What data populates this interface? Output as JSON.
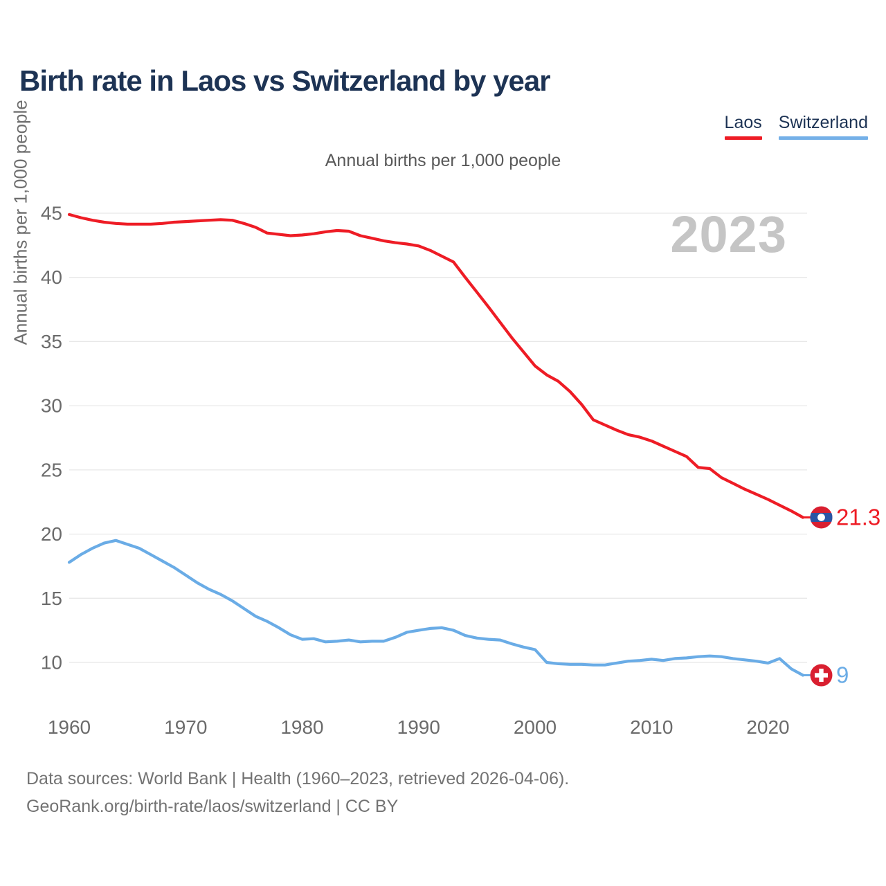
{
  "page": {
    "title": "Birth rate in Laos vs Switzerland by year",
    "subtitle": "Annual births per 1,000 people",
    "watermark": "2023",
    "source_line1": "Data sources: World Bank | Health (1960–2023, retrieved 2026-04-06).",
    "source_line2": "GeoRank.org/birth-rate/laos/switzerland | CC BY"
  },
  "legend": [
    {
      "label": "Laos",
      "color": "#ee1c25"
    },
    {
      "label": "Switzerland",
      "color": "#74b0e8"
    }
  ],
  "axis": {
    "y_title": "Annual births per 1,000 people"
  },
  "chart_data": {
    "type": "line",
    "title": "Birth rate in Laos vs Switzerland by year",
    "subtitle": "Annual births per 1,000 people",
    "ylabel": "Annual births per 1,000 people",
    "grid": "horizontal",
    "legend_position": "top-right",
    "watermark": "2023",
    "x_range": [
      1960,
      2023
    ],
    "ylim": [
      8,
      46
    ],
    "y_ticks": [
      45,
      40,
      35,
      30,
      25,
      20,
      15,
      10
    ],
    "x_ticks": [
      1960,
      1970,
      1980,
      1990,
      2000,
      2010,
      2020
    ],
    "years": [
      1960,
      1961,
      1962,
      1963,
      1964,
      1965,
      1966,
      1967,
      1968,
      1969,
      1970,
      1971,
      1972,
      1973,
      1974,
      1975,
      1976,
      1977,
      1978,
      1979,
      1980,
      1981,
      1982,
      1983,
      1984,
      1985,
      1986,
      1987,
      1988,
      1989,
      1990,
      1991,
      1992,
      1993,
      1994,
      1995,
      1996,
      1997,
      1998,
      1999,
      2000,
      2001,
      2002,
      2003,
      2004,
      2005,
      2006,
      2007,
      2008,
      2009,
      2010,
      2011,
      2012,
      2013,
      2014,
      2015,
      2016,
      2017,
      2018,
      2019,
      2020,
      2021,
      2022,
      2023
    ],
    "series": [
      {
        "id": "laos",
        "name": "Laos",
        "color": "#ee1c25",
        "flag": "laos",
        "end_label": "21.3",
        "final_value": 21.3,
        "values": [
          44.9,
          44.65,
          44.45,
          44.3,
          44.2,
          44.15,
          44.15,
          44.15,
          44.2,
          44.3,
          44.35,
          44.4,
          44.45,
          44.5,
          44.45,
          44.2,
          43.9,
          43.45,
          43.35,
          43.25,
          43.3,
          43.4,
          43.55,
          43.65,
          43.6,
          43.25,
          43.05,
          42.85,
          42.7,
          42.6,
          42.45,
          42.1,
          41.65,
          41.2,
          40.0,
          38.85,
          37.7,
          36.5,
          35.3,
          34.2,
          33.1,
          32.4,
          31.9,
          31.1,
          30.1,
          28.9,
          28.5,
          28.1,
          27.75,
          27.55,
          27.25,
          26.85,
          26.45,
          26.05,
          25.2,
          25.1,
          24.4,
          23.95,
          23.5,
          23.1,
          22.7,
          22.25,
          21.8,
          21.3
        ]
      },
      {
        "id": "switzerland",
        "name": "Switzerland",
        "color": "#6aace6",
        "flag": "switzerland",
        "end_label": "9",
        "final_value": 9,
        "values": [
          17.8,
          18.4,
          18.9,
          19.3,
          19.5,
          19.2,
          18.9,
          18.4,
          17.9,
          17.4,
          16.8,
          16.2,
          15.7,
          15.3,
          14.8,
          14.2,
          13.6,
          13.2,
          12.7,
          12.15,
          11.8,
          11.85,
          11.6,
          11.65,
          11.75,
          11.6,
          11.65,
          11.65,
          11.95,
          12.35,
          12.5,
          12.65,
          12.7,
          12.5,
          12.1,
          11.9,
          11.8,
          11.75,
          11.45,
          11.2,
          11.0,
          10.0,
          9.9,
          9.85,
          9.85,
          9.8,
          9.8,
          9.95,
          10.1,
          10.15,
          10.25,
          10.15,
          10.3,
          10.35,
          10.45,
          10.5,
          10.45,
          10.3,
          10.2,
          10.1,
          9.95,
          10.3,
          9.5,
          9.0
        ]
      }
    ]
  }
}
